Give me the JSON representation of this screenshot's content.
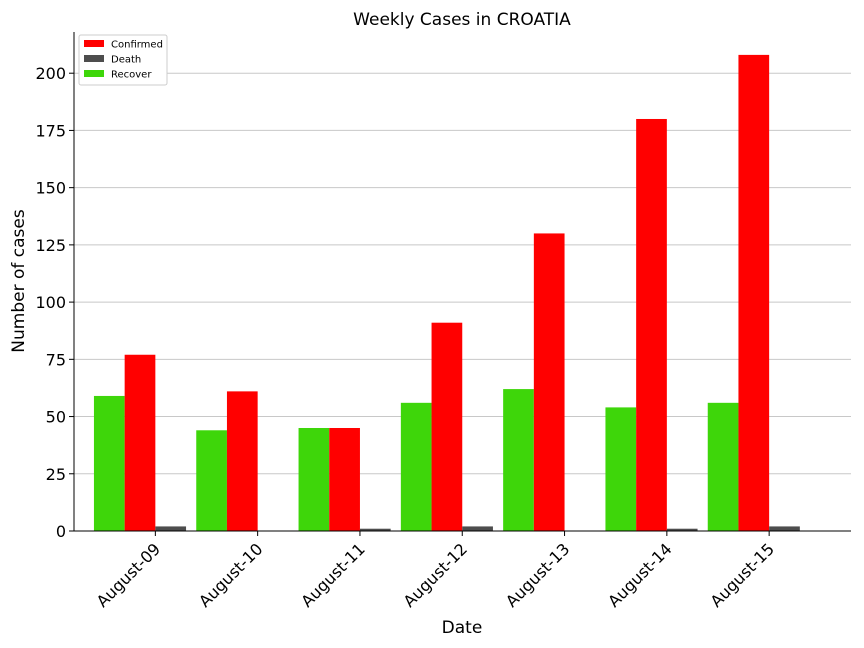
{
  "chart_data": {
    "type": "bar",
    "title": "Weekly Cases in CROATIA",
    "xlabel": "Date",
    "ylabel": "Number of cases",
    "categories": [
      "August-09",
      "August-10",
      "August-11",
      "August-12",
      "August-13",
      "August-14",
      "August-15"
    ],
    "series": [
      {
        "name": "Recover",
        "color": "#3ed60a",
        "values": [
          59,
          44,
          45,
          56,
          62,
          54,
          56
        ]
      },
      {
        "name": "Confirmed",
        "color": "#ff0000",
        "values": [
          77,
          61,
          45,
          91,
          130,
          180,
          208
        ]
      },
      {
        "name": "Death",
        "color": "#4d4d4d",
        "values": [
          2,
          0,
          1,
          2,
          0,
          1,
          2
        ]
      }
    ],
    "legend_order": [
      "Confirmed",
      "Death",
      "Recover"
    ],
    "legend_position": "top-left",
    "ylim": [
      0,
      218
    ],
    "yticks": [
      0,
      25,
      50,
      75,
      100,
      125,
      150,
      175,
      200
    ],
    "grid": "horizontal"
  }
}
